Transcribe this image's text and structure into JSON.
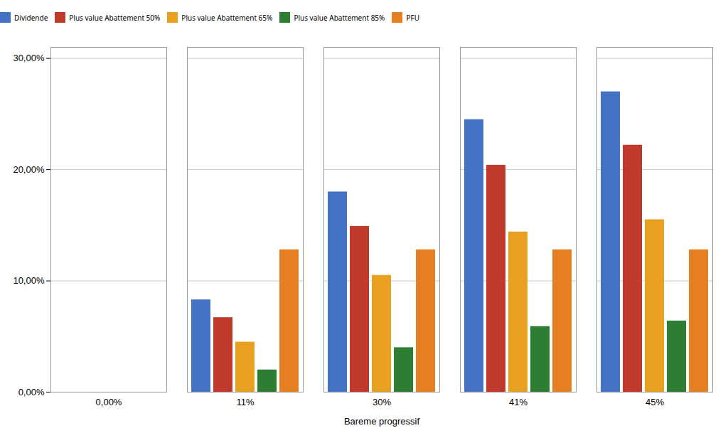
{
  "chart_data": {
    "type": "bar",
    "categories": [
      "0,00%",
      "11%",
      "30%",
      "41%",
      "45%"
    ],
    "series": [
      {
        "name": "Dividende",
        "color": "#4472C4",
        "values": [
          0,
          8.3,
          18.0,
          24.5,
          27.0
        ]
      },
      {
        "name": "Plus value Abattement 50%",
        "color": "#C0392B",
        "values": [
          0,
          6.7,
          14.9,
          20.4,
          22.2
        ]
      },
      {
        "name": "Plus value Abattement 65%",
        "color": "#E8A020",
        "values": [
          0,
          4.5,
          10.5,
          14.4,
          15.5
        ]
      },
      {
        "name": "Plus value Abattement 85%",
        "color": "#2E7D32",
        "values": [
          0,
          2.0,
          4.0,
          5.9,
          6.4
        ]
      },
      {
        "name": "PFU",
        "color": "#E67E22",
        "values": [
          0,
          12.8,
          12.8,
          12.8,
          12.8
        ]
      }
    ],
    "xlabel": "Bareme progressif",
    "ylim": [
      0,
      31
    ],
    "yticks": [
      {
        "value": 0,
        "label": "0,00%"
      },
      {
        "value": 10,
        "label": "10,00%"
      },
      {
        "value": 20,
        "label": "20,00%"
      },
      {
        "value": 30,
        "label": "30,00%"
      }
    ],
    "grid": true,
    "legend": "top"
  }
}
